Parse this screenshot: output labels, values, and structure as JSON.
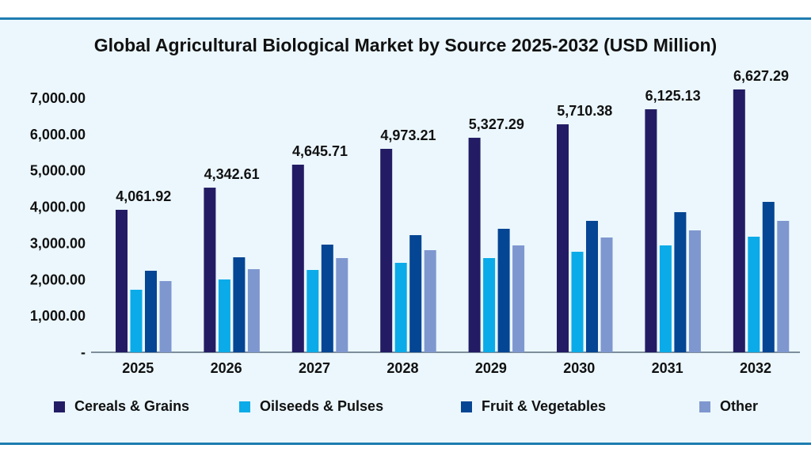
{
  "chart_data": {
    "type": "bar",
    "title": "Global Agricultural Biological Market by Source 2025-2032 (USD Million)",
    "xlabel": "",
    "ylabel": "",
    "ylim": [
      0,
      7000
    ],
    "yticks": [
      "-",
      "1,000.00",
      "2,000.00",
      "3,000.00",
      "4,000.00",
      "5,000.00",
      "6,000.00",
      "7,000.00"
    ],
    "grid": false,
    "legend": "bottom",
    "categories": [
      "2025",
      "2026",
      "2027",
      "2028",
      "2029",
      "2030",
      "2031",
      "2032"
    ],
    "series": [
      {
        "name": "Cereals & Grains",
        "color": "#231c64",
        "values": [
          3925,
          4535,
          5168,
          5604,
          5909,
          6280,
          6694,
          7240
        ]
      },
      {
        "name": "Oilseeds & Pulses",
        "color": "#0aabe8",
        "values": [
          1723,
          2006,
          2268,
          2464,
          2595,
          2769,
          2944,
          3184
        ]
      },
      {
        "name": "Fruit & Vegetables",
        "color": "#044594",
        "values": [
          2246,
          2617,
          2966,
          3227,
          3402,
          3620,
          3860,
          4143
        ]
      },
      {
        "name": "Other",
        "color": "#7f97cf",
        "values": [
          1962,
          2290,
          2595,
          2813,
          2944,
          3162,
          3358,
          3620
        ]
      }
    ],
    "annotations": [
      "4,061.92",
      "4,342.61",
      "4,645.71",
      "4,973.21",
      "5,327.29",
      "5,710.38",
      "6,125.13",
      "6,627.29"
    ]
  }
}
